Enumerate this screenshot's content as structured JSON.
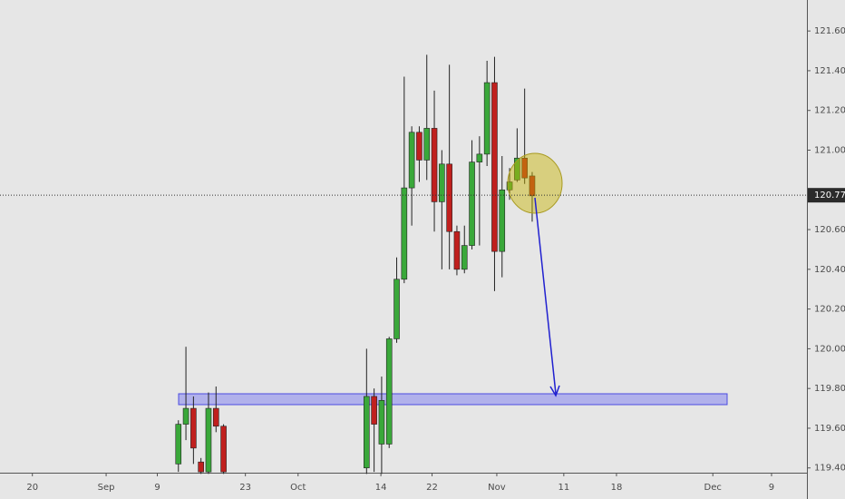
{
  "chart_data": {
    "type": "candlestick",
    "x": [
      0,
      1,
      2,
      3,
      4,
      5,
      6,
      25,
      26,
      27,
      28,
      29,
      30,
      31,
      32,
      33,
      34,
      35,
      36,
      37,
      38,
      39,
      40,
      41,
      42,
      43,
      44,
      45,
      46,
      47
    ],
    "open": [
      119.42,
      119.62,
      119.7,
      119.43,
      119.38,
      119.7,
      119.61,
      119.4,
      119.76,
      119.52,
      119.52,
      120.05,
      120.35,
      120.81,
      121.09,
      120.95,
      121.11,
      120.74,
      120.93,
      120.59,
      120.4,
      120.52,
      120.94,
      120.98,
      121.34,
      120.49,
      120.8,
      120.85,
      120.96,
      120.87
    ],
    "high": [
      119.64,
      120.01,
      119.76,
      119.45,
      119.78,
      119.81,
      119.62,
      120.0,
      119.8,
      119.86,
      120.06,
      120.46,
      121.37,
      121.12,
      121.12,
      121.48,
      121.3,
      121.0,
      121.43,
      120.62,
      120.62,
      121.05,
      121.07,
      121.45,
      121.47,
      120.97,
      120.91,
      121.11,
      121.31,
      120.89
    ],
    "low": [
      119.38,
      119.54,
      119.42,
      119.37,
      119.37,
      119.58,
      119.37,
      119.37,
      119.38,
      119.37,
      119.5,
      120.03,
      120.33,
      120.62,
      120.84,
      120.85,
      120.59,
      120.4,
      120.4,
      120.37,
      120.38,
      120.5,
      120.52,
      120.92,
      120.29,
      120.36,
      120.75,
      120.84,
      120.83,
      120.64
    ],
    "close": [
      119.62,
      119.7,
      119.5,
      119.38,
      119.7,
      119.61,
      119.38,
      119.76,
      119.62,
      119.74,
      120.05,
      120.35,
      120.81,
      121.09,
      120.95,
      121.11,
      120.74,
      120.93,
      120.59,
      120.4,
      120.52,
      120.94,
      120.98,
      121.34,
      120.49,
      120.8,
      120.84,
      120.96,
      120.86,
      120.77
    ],
    "up_color": "#3aa83a",
    "down_color": "#c0201e",
    "xlim": [
      -23.7,
      83.5
    ],
    "xticks": [
      {
        "value": -19.4,
        "label": "20"
      },
      {
        "value": -9.6,
        "label": "Sep"
      },
      {
        "value": -2.8,
        "label": "9"
      },
      {
        "value": 8.9,
        "label": "23"
      },
      {
        "value": 15.9,
        "label": "Oct"
      },
      {
        "value": 26.9,
        "label": "14"
      },
      {
        "value": 33.7,
        "label": "22"
      },
      {
        "value": 42.3,
        "label": "Nov"
      },
      {
        "value": 51.2,
        "label": "11"
      },
      {
        "value": 58.2,
        "label": "18"
      },
      {
        "value": 71,
        "label": "Dec"
      },
      {
        "value": 78.8,
        "label": "9"
      }
    ],
    "ylim": [
      119.376,
      121.756
    ],
    "yticks": [
      {
        "value": 119.4,
        "label": "119.400"
      },
      {
        "value": 119.6,
        "label": "119.600"
      },
      {
        "value": 119.8,
        "label": "119.800"
      },
      {
        "value": 120.0,
        "label": "120.000"
      },
      {
        "value": 120.2,
        "label": "120.200"
      },
      {
        "value": 120.4,
        "label": "120.400"
      },
      {
        "value": 120.6,
        "label": "120.600"
      },
      {
        "value": 121.0,
        "label": "121.000"
      },
      {
        "value": 121.2,
        "label": "121.200"
      },
      {
        "value": 121.4,
        "label": "121.400"
      },
      {
        "value": 121.6,
        "label": "121.600"
      }
    ],
    "last_price": 120.773
  }
}
